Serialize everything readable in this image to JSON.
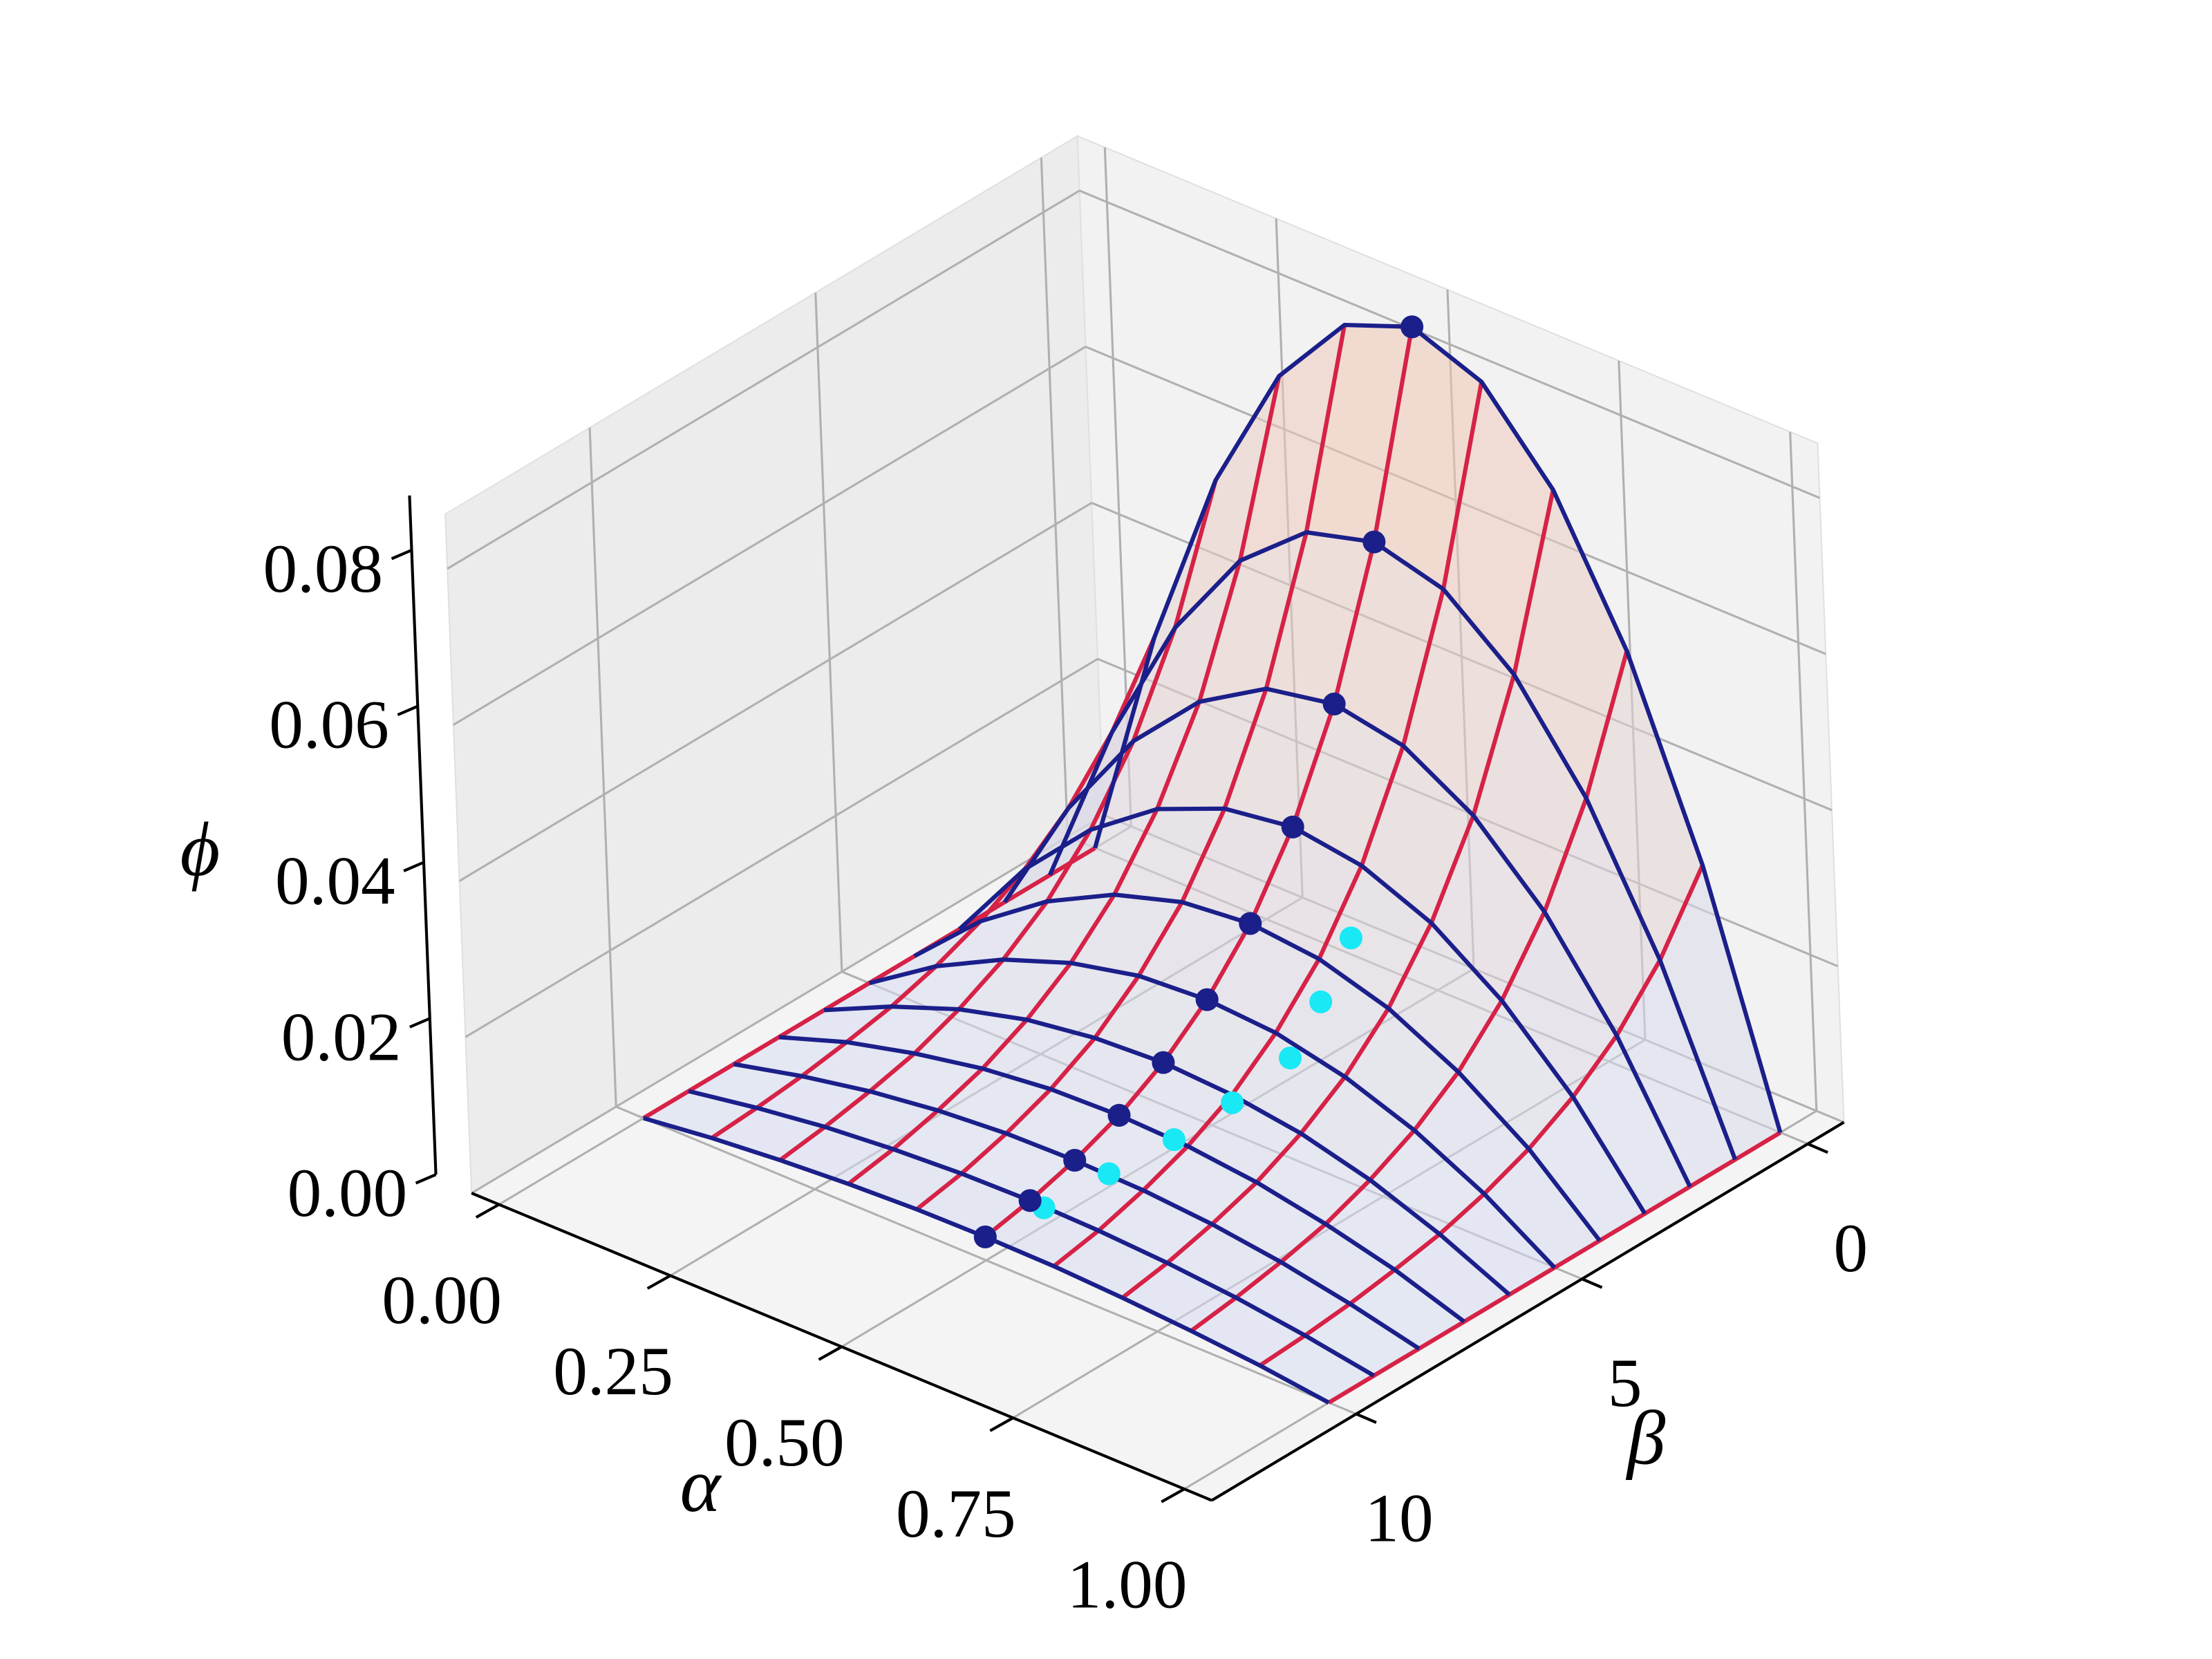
{
  "chart_data": {
    "type": "surface3d",
    "xlabel": "α",
    "ylabel": "β",
    "zlabel": "ϕ",
    "x": [
      0,
      0.1,
      0.2,
      0.3,
      0.4,
      0.5,
      0.6,
      0.7,
      0.8,
      0.9,
      1
    ],
    "y": [
      0,
      1,
      2,
      3,
      4,
      5,
      6,
      7,
      8,
      9,
      10
    ],
    "z": [
      [
        0,
        0.0306,
        0.0544,
        0.0714,
        0.0816,
        0.085,
        0.0816,
        0.0714,
        0.0544,
        0.0306,
        0
      ],
      [
        0,
        0.0219,
        0.039,
        0.0512,
        0.0585,
        0.0609,
        0.0585,
        0.0512,
        0.039,
        0.0219,
        0
      ],
      [
        0,
        0.0157,
        0.0279,
        0.0366,
        0.0419,
        0.0436,
        0.0419,
        0.0366,
        0.0279,
        0.0157,
        0
      ],
      [
        0,
        0.0113,
        0.02,
        0.0263,
        0.03,
        0.0313,
        0.03,
        0.0263,
        0.02,
        0.0113,
        0
      ],
      [
        0,
        0.0081,
        0.0143,
        0.0188,
        0.0215,
        0.0224,
        0.0215,
        0.0188,
        0.0143,
        0.0081,
        0
      ],
      [
        0,
        0.0058,
        0.0103,
        0.0135,
        0.0155,
        0.0161,
        0.0155,
        0.0135,
        0.0103,
        0.0058,
        0
      ],
      [
        0,
        0.0041,
        0.0074,
        0.0097,
        0.011,
        0.0115,
        0.011,
        0.0097,
        0.0074,
        0.0041,
        0
      ],
      [
        0,
        0.003,
        0.0052,
        0.0069,
        0.0079,
        0.0082,
        0.0079,
        0.0069,
        0.0052,
        0.003,
        0
      ],
      [
        0,
        0.0021,
        0.0038,
        0.005,
        0.0057,
        0.0059,
        0.0057,
        0.005,
        0.0038,
        0.0021,
        0
      ],
      [
        0,
        0.0015,
        0.0027,
        0.0035,
        0.004,
        0.0042,
        0.004,
        0.0035,
        0.0027,
        0.0015,
        0
      ],
      [
        0,
        0.0011,
        0.0019,
        0.0025,
        0.0029,
        0.003,
        0.0029,
        0.0025,
        0.0019,
        0.0011,
        0
      ]
    ],
    "xlim": [
      -0.04,
      1.04
    ],
    "ylim": [
      -0.8,
      13.2
    ],
    "zlim": [
      0,
      0.087
    ],
    "xticks": [
      {
        "value": 0,
        "label": "0.00"
      },
      {
        "value": 0.25,
        "label": "0.25"
      },
      {
        "value": 0.5,
        "label": "0.50"
      },
      {
        "value": 0.75,
        "label": "0.75"
      },
      {
        "value": 1,
        "label": "1.00"
      }
    ],
    "yticks": [
      0,
      5,
      10
    ],
    "zticks": [
      {
        "value": 0,
        "label": "0.00"
      },
      {
        "value": 0.02,
        "label": "0.02"
      },
      {
        "value": 0.04,
        "label": "0.04"
      },
      {
        "value": 0.06,
        "label": "0.06"
      },
      {
        "value": 0.08,
        "label": "0.08"
      }
    ],
    "grid": true,
    "x_line_color": "#d62246",
    "y_line_color": "#1b1f8a",
    "surface_low_color": "#d6def4",
    "surface_high_color": "#f7c3a8",
    "scatter": [
      {
        "color": "#19e8f5",
        "x": [
          0.5,
          0.52,
          0.55,
          0.58,
          0.6,
          0.62,
          0.6,
          0.58
        ],
        "y": [
          10,
          9,
          8,
          7,
          6,
          5,
          4,
          3
        ],
        "z": [
          0.003,
          0.004,
          0.006,
          0.008,
          0.01,
          0.013,
          0.016,
          0.02
        ]
      },
      {
        "color": "#1b1f8a",
        "x": [
          0.5,
          0.5,
          0.5,
          0.5,
          0.5,
          0.5,
          0.5,
          0.5,
          0.5,
          0.5,
          0.5
        ],
        "y": [
          0,
          1,
          2,
          3,
          4,
          5,
          6,
          7,
          8,
          9,
          10
        ],
        "z": [
          0.085,
          0.0609,
          0.0436,
          0.0313,
          0.0224,
          0.0161,
          0.0115,
          0.0082,
          0.0059,
          0.0042,
          0.003
        ]
      }
    ]
  }
}
